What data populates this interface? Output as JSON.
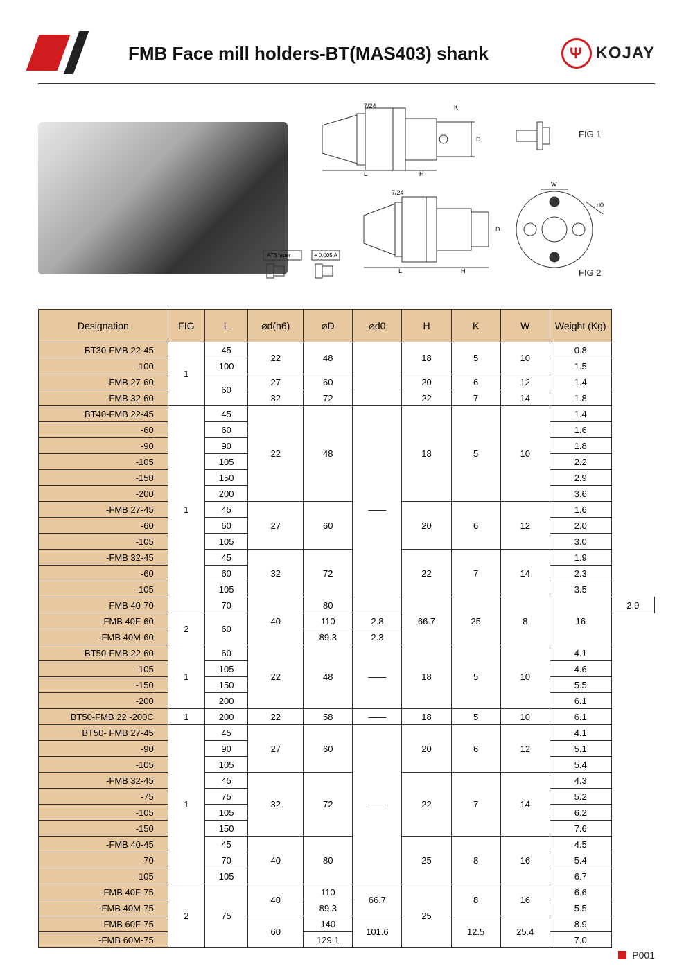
{
  "header": {
    "title": "FMB Face mill holders-BT(MAS403) shank",
    "brand": "KOJAY",
    "fig1_label": "FIG 1",
    "fig2_label": "FIG 2"
  },
  "footer": {
    "page": "P001"
  },
  "table": {
    "columns": [
      "Designation",
      "FIG",
      "L",
      "⌀d(h6)",
      "⌀D",
      "⌀d0",
      "H",
      "K",
      "W",
      "Weight (Kg)"
    ],
    "col_widths": [
      "21%",
      "6%",
      "7%",
      "9%",
      "8%",
      "8%",
      "8%",
      "8%",
      "8%",
      "10%"
    ],
    "header_bg": "#e8c8a0",
    "desig_bg": "#e8c8a0",
    "border_color": "#333333",
    "rows": [
      {
        "d": "BT30-FMB 22-45",
        "f": {
          "v": "1",
          "rs": 4
        },
        "l": "45",
        "dh": {
          "v": "22",
          "rs": 2
        },
        "D": {
          "v": "48",
          "rs": 2
        },
        "d0": {
          "v": "",
          "rs": 4
        },
        "H": {
          "v": "18",
          "rs": 2
        },
        "K": {
          "v": "5",
          "rs": 2
        },
        "W": {
          "v": "10",
          "rs": 2
        },
        "wt": "0.8"
      },
      {
        "d": "-100",
        "l": "100",
        "wt": "1.5"
      },
      {
        "d": "-FMB 27-60",
        "l": {
          "v": "60",
          "rs": 2
        },
        "dh": "27",
        "D": "60",
        "H": "20",
        "K": "6",
        "W": "12",
        "wt": "1.4"
      },
      {
        "d": "-FMB 32-60",
        "dh": "32",
        "D": "72",
        "H": "22",
        "K": "7",
        "W": "14",
        "wt": "1.8"
      },
      {
        "d": "BT40-FMB 22-45",
        "f": {
          "v": "1",
          "rs": 13
        },
        "l": "45",
        "dh": {
          "v": "22",
          "rs": 6
        },
        "D": {
          "v": "48",
          "rs": 6
        },
        "d0": {
          "v": "——",
          "rs": 13
        },
        "H": {
          "v": "18",
          "rs": 6
        },
        "K": {
          "v": "5",
          "rs": 6
        },
        "W": {
          "v": "10",
          "rs": 6
        },
        "wt": "1.4"
      },
      {
        "d": "-60",
        "l": "60",
        "wt": "1.6"
      },
      {
        "d": "-90",
        "l": "90",
        "wt": "1.8"
      },
      {
        "d": "-105",
        "l": "105",
        "wt": "2.2"
      },
      {
        "d": "-150",
        "l": "150",
        "wt": "2.9"
      },
      {
        "d": "-200",
        "l": "200",
        "wt": "3.6"
      },
      {
        "d": "-FMB 27-45",
        "l": "45",
        "dh": {
          "v": "27",
          "rs": 3
        },
        "D": {
          "v": "60",
          "rs": 3
        },
        "H": {
          "v": "20",
          "rs": 3
        },
        "K": {
          "v": "6",
          "rs": 3
        },
        "W": {
          "v": "12",
          "rs": 3
        },
        "wt": "1.6"
      },
      {
        "d": "-60",
        "l": "60",
        "wt": "2.0"
      },
      {
        "d": "-105",
        "l": "105",
        "wt": "3.0"
      },
      {
        "d": "-FMB 32-45",
        "l": "45",
        "dh": {
          "v": "32",
          "rs": 3
        },
        "D": {
          "v": "72",
          "rs": 3
        },
        "H": {
          "v": "22",
          "rs": 3
        },
        "K": {
          "v": "7",
          "rs": 3
        },
        "W": {
          "v": "14",
          "rs": 3
        },
        "wt": "1.9"
      },
      {
        "d": "-60",
        "l": "60",
        "wt": "2.3"
      },
      {
        "d": "-105",
        "l": "105",
        "wt": "3.5"
      },
      {
        "d": "-FMB 40-70",
        "l": "70",
        "dh": {
          "v": "40",
          "rs": 3
        },
        "D": "80",
        "d0": {
          "v": "66.7",
          "rs": 3
        },
        "H": {
          "v": "25",
          "rs": 3
        },
        "K": {
          "v": "8",
          "rs": 3
        },
        "W": {
          "v": "16",
          "rs": 3
        },
        "wt": "2.9"
      },
      {
        "d": "-FMB 40F-60",
        "f": {
          "v": "2",
          "rs": 2
        },
        "l": {
          "v": "60",
          "rs": 2
        },
        "D": "110",
        "wt": "2.8"
      },
      {
        "d": "-FMB 40M-60",
        "D": "89.3",
        "wt": "2.3"
      },
      {
        "d": "BT50-FMB 22-60",
        "f": {
          "v": "1",
          "rs": 4
        },
        "l": "60",
        "dh": {
          "v": "22",
          "rs": 4
        },
        "D": {
          "v": "48",
          "rs": 4
        },
        "d0": {
          "v": "——",
          "rs": 4
        },
        "H": {
          "v": "18",
          "rs": 4
        },
        "K": {
          "v": "5",
          "rs": 4
        },
        "W": {
          "v": "10",
          "rs": 4
        },
        "wt": "4.1"
      },
      {
        "d": "-105",
        "l": "105",
        "wt": "4.6"
      },
      {
        "d": "-150",
        "l": "150",
        "wt": "5.5"
      },
      {
        "d": "-200",
        "l": "200",
        "wt": "6.1"
      },
      {
        "d": "BT50-FMB 22 -200C",
        "f": "1",
        "l": "200",
        "dh": "22",
        "D": "58",
        "d0": "——",
        "H": "18",
        "K": "5",
        "W": "10",
        "wt": "6.1"
      },
      {
        "d": "BT50- FMB 27-45",
        "f": {
          "v": "1",
          "rs": 10
        },
        "l": "45",
        "dh": {
          "v": "27",
          "rs": 3
        },
        "D": {
          "v": "60",
          "rs": 3
        },
        "d0": {
          "v": "——",
          "rs": 10
        },
        "H": {
          "v": "20",
          "rs": 3
        },
        "K": {
          "v": "6",
          "rs": 3
        },
        "W": {
          "v": "12",
          "rs": 3
        },
        "wt": "4.1"
      },
      {
        "d": "-90",
        "l": "90",
        "wt": "5.1"
      },
      {
        "d": "-105",
        "l": "105",
        "wt": "5.4"
      },
      {
        "d": "-FMB 32-45",
        "l": "45",
        "dh": {
          "v": "32",
          "rs": 4
        },
        "D": {
          "v": "72",
          "rs": 4
        },
        "H": {
          "v": "22",
          "rs": 4
        },
        "K": {
          "v": "7",
          "rs": 4
        },
        "W": {
          "v": "14",
          "rs": 4
        },
        "wt": "4.3"
      },
      {
        "d": "-75",
        "l": "75",
        "wt": "5.2"
      },
      {
        "d": "-105",
        "l": "105",
        "wt": "6.2"
      },
      {
        "d": "-150",
        "l": "150",
        "wt": "7.6"
      },
      {
        "d": "-FMB 40-45",
        "l": "45",
        "dh": {
          "v": "40",
          "rs": 3
        },
        "D": {
          "v": "80",
          "rs": 3
        },
        "H": {
          "v": "25",
          "rs": 3
        },
        "K": {
          "v": "8",
          "rs": 3
        },
        "W": {
          "v": "16",
          "rs": 3
        },
        "wt": "4.5"
      },
      {
        "d": "-70",
        "l": "70",
        "wt": "5.4"
      },
      {
        "d": "-105",
        "l": "105",
        "wt": "6.7"
      },
      {
        "d": "-FMB 40F-75",
        "f": {
          "v": "2",
          "rs": 4
        },
        "l": {
          "v": "75",
          "rs": 4
        },
        "dh": {
          "v": "40",
          "rs": 2
        },
        "D": "110",
        "d0": {
          "v": "66.7",
          "rs": 2
        },
        "H": {
          "v": "25",
          "rs": 4
        },
        "K": {
          "v": "8",
          "rs": 2
        },
        "W": {
          "v": "16",
          "rs": 2
        },
        "wt": "6.6"
      },
      {
        "d": "-FMB 40M-75",
        "D": "89.3",
        "wt": "5.5"
      },
      {
        "d": "-FMB 60F-75",
        "dh": {
          "v": "60",
          "rs": 2
        },
        "D": "140",
        "d0": {
          "v": "101.6",
          "rs": 2
        },
        "K": {
          "v": "12.5",
          "rs": 2
        },
        "W": {
          "v": "25.4",
          "rs": 2
        },
        "wt": "8.9"
      },
      {
        "d": "-FMB 60M-75",
        "D": "129.1",
        "wt": "7.0"
      }
    ]
  }
}
